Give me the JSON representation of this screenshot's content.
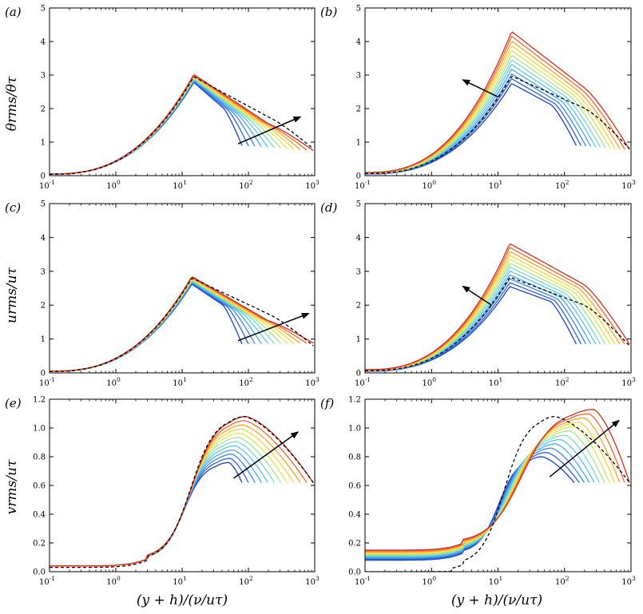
{
  "figure": {
    "xlabel": "(y + h)/(ν/uτ)",
    "ylabels": [
      "θrms/θτ",
      "urms/uτ",
      "vrms/uτ"
    ]
  },
  "chart_data": [
    {
      "type": "line",
      "panel": "(a)",
      "xscale": "log",
      "xlim": [
        0.1,
        1000
      ],
      "ylim": [
        0,
        5
      ],
      "yticks": [
        "0",
        "1",
        "2",
        "3",
        "4",
        "5"
      ],
      "yticks_values": [
        0,
        1,
        2,
        3,
        4,
        5
      ],
      "xticks": [
        "10-1",
        "100",
        "101",
        "102",
        "103"
      ],
      "series_count": 12,
      "mode": "increasing_reach",
      "peak_x": 15,
      "peak_lo": 2.78,
      "peak_hi": 3.02,
      "dashed_peak": 2.95,
      "near_wall": 0.05,
      "tail_end_lo": 0.9,
      "tail_end_hi": 0.75,
      "x_end_lo": 80,
      "x_end_hi": 950,
      "arrow": {
        "from": [
          70,
          0.95
        ],
        "to": [
          600,
          1.75
        ]
      }
    },
    {
      "type": "line",
      "panel": "(b)",
      "xscale": "log",
      "xlim": [
        0.1,
        1000
      ],
      "ylim": [
        0,
        5
      ],
      "yticks": [
        "0",
        "1",
        "2",
        "3",
        "4",
        "5"
      ],
      "yticks_values": [
        0,
        1,
        2,
        3,
        4,
        5
      ],
      "xticks": [
        "10-1",
        "100",
        "101",
        "102",
        "103"
      ],
      "series_count": 12,
      "mode": "growing_peak",
      "peak_x": 16,
      "peak_lo": 2.75,
      "peak_hi": 4.3,
      "dashed_peak": 2.97,
      "near_wall": 0.08,
      "tail_end_lo": 0.9,
      "tail_end_hi": 0.78,
      "x_end_lo": 150,
      "x_end_hi": 950,
      "arrow": {
        "from": [
          10,
          2.35
        ],
        "to": [
          3,
          2.85
        ]
      }
    },
    {
      "type": "line",
      "panel": "(c)",
      "xscale": "log",
      "xlim": [
        0.1,
        1000
      ],
      "ylim": [
        0,
        5
      ],
      "yticks": [
        "0",
        "1",
        "2",
        "3",
        "4",
        "5"
      ],
      "yticks_values": [
        0,
        1,
        2,
        3,
        4,
        5
      ],
      "xticks": [
        "10-1",
        "100",
        "101",
        "102",
        "103"
      ],
      "series_count": 12,
      "mode": "increasing_reach",
      "peak_x": 14,
      "peak_lo": 2.62,
      "peak_hi": 2.85,
      "dashed_peak": 2.8,
      "near_wall": 0.05,
      "tail_end_lo": 0.85,
      "tail_end_hi": 0.88,
      "x_end_lo": 80,
      "x_end_hi": 950,
      "arrow": {
        "from": [
          70,
          0.95
        ],
        "to": [
          800,
          1.75
        ]
      }
    },
    {
      "type": "line",
      "panel": "(d)",
      "xscale": "log",
      "xlim": [
        0.1,
        1000
      ],
      "ylim": [
        0,
        5
      ],
      "yticks": [
        "0",
        "1",
        "2",
        "3",
        "4",
        "5"
      ],
      "yticks_values": [
        0,
        1,
        2,
        3,
        4,
        5
      ],
      "xticks": [
        "10-1",
        "100",
        "101",
        "102",
        "103"
      ],
      "series_count": 12,
      "mode": "growing_peak",
      "peak_x": 15,
      "peak_lo": 2.55,
      "peak_hi": 3.82,
      "dashed_peak": 2.83,
      "near_wall": 0.08,
      "tail_end_lo": 0.85,
      "tail_end_hi": 0.85,
      "x_end_lo": 150,
      "x_end_hi": 950,
      "arrow": {
        "from": [
          8,
          2.0
        ],
        "to": [
          3,
          2.55
        ]
      }
    },
    {
      "type": "line",
      "panel": "(e)",
      "xscale": "log",
      "xlim": [
        0.1,
        1000
      ],
      "ylim": [
        0,
        1.2
      ],
      "yticks": [
        "0.0",
        "0.2",
        "0.4",
        "0.6",
        "0.8",
        "1.0",
        "1.2"
      ],
      "yticks_values": [
        0,
        0.2,
        0.4,
        0.6,
        0.8,
        1.0,
        1.2
      ],
      "xticks": [
        "10-1",
        "100",
        "101",
        "102",
        "103"
      ],
      "series_count": 12,
      "mode": "v_shift",
      "peak_x_lo": 50,
      "peak_x_hi": 90,
      "peak_lo": 0.76,
      "peak_hi": 1.08,
      "dashed_peak": 1.08,
      "plateau_lo": 0.04,
      "plateau_hi": 0.04,
      "dashed_plateau": 0.03,
      "x_end_lo": 80,
      "x_end_hi": 950,
      "arrow": {
        "from": [
          60,
          0.65
        ],
        "to": [
          550,
          0.97
        ]
      }
    },
    {
      "type": "line",
      "panel": "(f)",
      "xscale": "log",
      "xlim": [
        0.1,
        1000
      ],
      "ylim": [
        0,
        1.2
      ],
      "yticks": [
        "0.0",
        "0.2",
        "0.4",
        "0.6",
        "0.8",
        "1.0",
        "1.2"
      ],
      "yticks_values": [
        0,
        0.2,
        0.4,
        0.6,
        0.8,
        1.0,
        1.2
      ],
      "xticks": [
        "10-1",
        "100",
        "101",
        "102",
        "103"
      ],
      "series_count": 12,
      "mode": "v_shift_f",
      "peak_x_lo": 45,
      "peak_x_hi": 270,
      "peak_lo": 0.8,
      "peak_hi": 1.13,
      "dashed_peak": 1.08,
      "plateau_lo": 0.08,
      "plateau_hi": 0.15,
      "dashed_plateau": 0.0,
      "x_end_lo": 140,
      "x_end_hi": 950,
      "arrow": {
        "from": [
          60,
          0.66
        ],
        "to": [
          650,
          1.05
        ]
      }
    }
  ]
}
